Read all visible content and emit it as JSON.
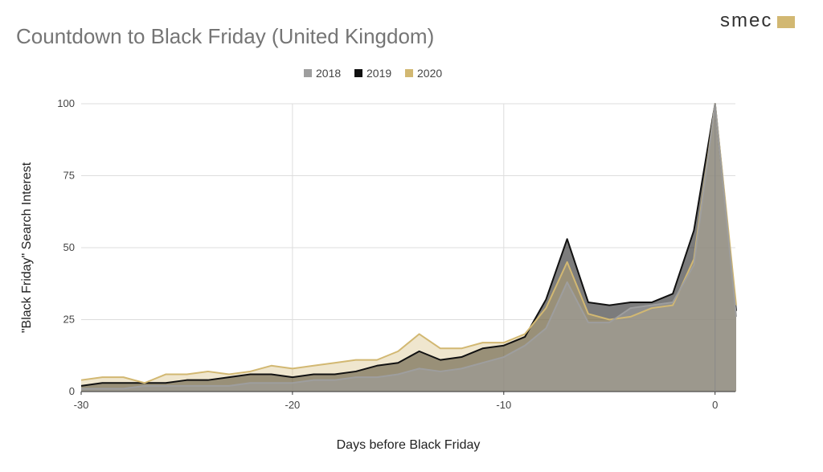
{
  "brand": {
    "text": "smec",
    "color": "#d2b872"
  },
  "chart_data": {
    "type": "area",
    "title": "Countdown to Black Friday (United Kingdom)",
    "xlabel": "Days before Black Friday",
    "ylabel": "\"Black Friday\" Search Interest",
    "xlim": [
      -30,
      1
    ],
    "ylim": [
      0,
      100
    ],
    "xticks": [
      -30,
      -20,
      -10,
      0
    ],
    "yticks": [
      0,
      25,
      50,
      75,
      100
    ],
    "vertical_gridlines": [
      -20,
      -10,
      0
    ],
    "grid": true,
    "legend_position": "top-center",
    "x": [
      -30,
      -29,
      -28,
      -27,
      -26,
      -25,
      -24,
      -23,
      -22,
      -21,
      -20,
      -19,
      -18,
      -17,
      -16,
      -15,
      -14,
      -13,
      -12,
      -11,
      -10,
      -9,
      -8,
      -7,
      -6,
      -5,
      -4,
      -3,
      -2,
      -1,
      0,
      1
    ],
    "series": [
      {
        "name": "2018",
        "color": "#9e9e9e",
        "values": [
          1,
          1,
          1,
          2,
          2,
          2,
          2,
          2,
          3,
          3,
          3,
          4,
          4,
          5,
          5,
          6,
          8,
          7,
          8,
          10,
          12,
          16,
          22,
          38,
          24,
          24,
          29,
          30,
          31,
          44,
          100,
          26
        ]
      },
      {
        "name": "2019",
        "color": "#111111",
        "values": [
          2,
          3,
          3,
          3,
          3,
          4,
          4,
          5,
          6,
          6,
          5,
          6,
          6,
          7,
          9,
          10,
          14,
          11,
          12,
          15,
          16,
          19,
          32,
          53,
          31,
          30,
          31,
          31,
          34,
          56,
          100,
          28
        ]
      },
      {
        "name": "2020",
        "color": "#d2b872",
        "values": [
          4,
          5,
          5,
          3,
          6,
          6,
          7,
          6,
          7,
          9,
          8,
          9,
          10,
          11,
          11,
          14,
          20,
          15,
          15,
          17,
          17,
          20,
          29,
          45,
          27,
          25,
          26,
          29,
          30,
          46,
          100,
          30
        ]
      }
    ]
  }
}
